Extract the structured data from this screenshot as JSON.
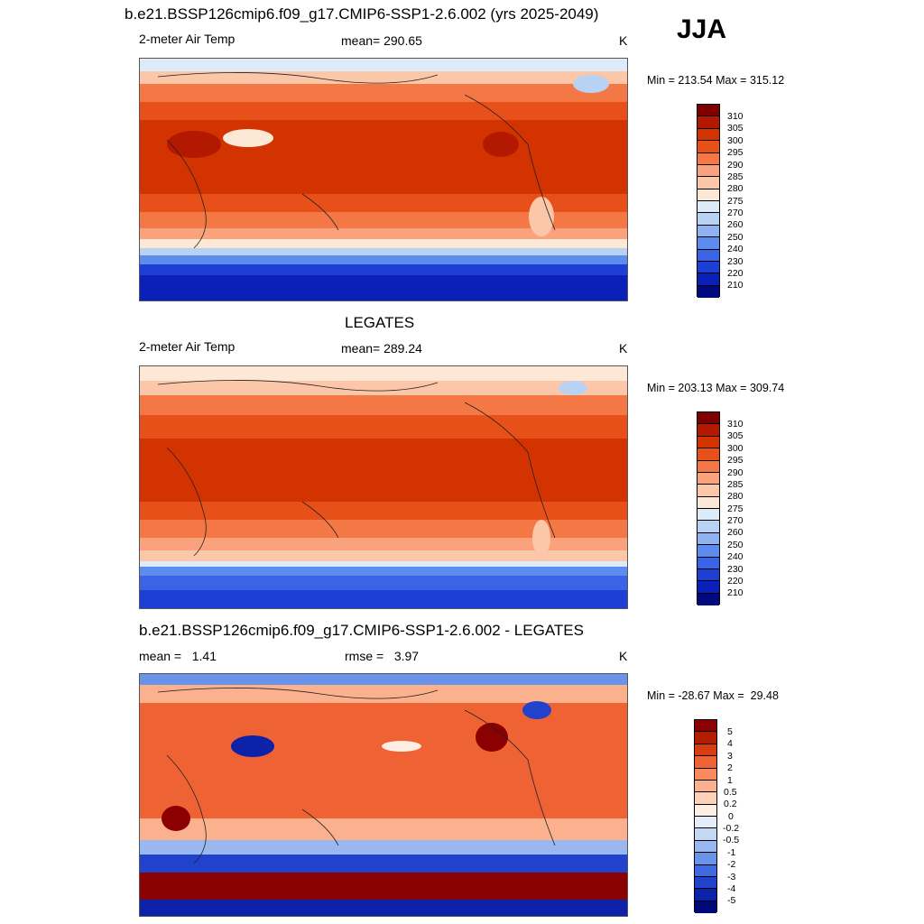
{
  "panels": [
    {
      "title": "b.e21.BSSP126cmip6.f09_g17.CMIP6-SSP1-2.6.002 (yrs 2025-2049)",
      "season": "JJA",
      "left": "2-meter Air Temp",
      "center": "mean= 290.65",
      "unit": "K",
      "minmax": "Min = 213.54 Max = 315.12"
    },
    {
      "title": "LEGATES",
      "left": "2-meter Air Temp",
      "center": "mean= 289.24",
      "unit": "K",
      "minmax": "Min = 203.13 Max = 309.74"
    },
    {
      "title": "b.e21.BSSP126cmip6.f09_g17.CMIP6-SSP1-2.6.002 - LEGATES",
      "left": "mean =   1.41",
      "center": "rmse =   3.97",
      "unit": "K",
      "minmax": "Min = -28.67 Max =  29.48"
    }
  ],
  "temp_colorbar": {
    "labels": [
      "310",
      "305",
      "300",
      "295",
      "290",
      "285",
      "280",
      "275",
      "270",
      "260",
      "250",
      "240",
      "230",
      "220",
      "210"
    ],
    "colors": [
      "#7e0000",
      "#b31800",
      "#d33300",
      "#e8501a",
      "#f37845",
      "#f9a27c",
      "#fcc6a9",
      "#fde8d6",
      "#ddebf8",
      "#b8d2f4",
      "#8fb2f0",
      "#5c8cee",
      "#3a63e6",
      "#1d3fd6",
      "#0a20b8",
      "#000a7e"
    ]
  },
  "diff_colorbar": {
    "labels": [
      "5",
      "4",
      "3",
      "2",
      "1",
      "0.5",
      "0.2",
      "0",
      "-0.2",
      "-0.5",
      "-1",
      "-2",
      "-3",
      "-4",
      "-5"
    ],
    "colors": [
      "#8b0000",
      "#b41e00",
      "#d83c10",
      "#ef6234",
      "#f88a5e",
      "#fbb08e",
      "#fdd0b8",
      "#feeee4",
      "#e4eefa",
      "#c2d8f5",
      "#9ab8f0",
      "#6a93ea",
      "#3f6ae2",
      "#2143cc",
      "#0c22a8",
      "#00097a"
    ]
  }
}
